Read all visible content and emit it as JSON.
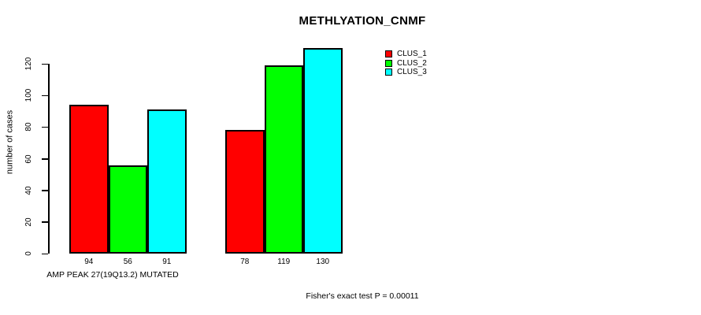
{
  "chart_data": {
    "type": "bar",
    "title": "METHLYATION_CNMF",
    "ylabel": "number of cases",
    "xlabel": "",
    "categories": [
      "AMP PEAK 27(19Q13.2) MUTATED",
      ""
    ],
    "series": [
      {
        "name": "CLUS_1",
        "color": "#ff0000",
        "values": [
          94,
          78
        ]
      },
      {
        "name": "CLUS_2",
        "color": "#00ff00",
        "values": [
          56,
          119
        ]
      },
      {
        "name": "CLUS_3",
        "color": "#00ffff",
        "values": [
          91,
          130
        ]
      }
    ],
    "yticks": [
      0,
      20,
      40,
      60,
      80,
      100,
      120
    ],
    "ylim": [
      0,
      130
    ],
    "bar_value_labels": [
      [
        94,
        56,
        91
      ],
      [
        78,
        119,
        130
      ]
    ],
    "legend_position": "top-right",
    "grid": false,
    "annotation": "Fisher's exact test P = 0.00011",
    "bar_border_color": "#000000",
    "background_color": "#ffffff",
    "text_color": "#000000"
  }
}
